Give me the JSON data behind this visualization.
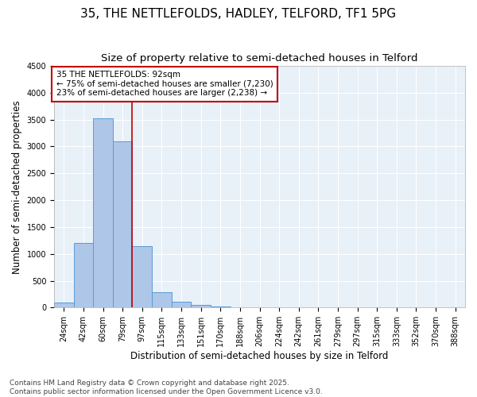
{
  "title_line1": "35, THE NETTLEFOLDS, HADLEY, TELFORD, TF1 5PG",
  "title_line2": "Size of property relative to semi-detached houses in Telford",
  "xlabel": "Distribution of semi-detached houses by size in Telford",
  "ylabel": "Number of semi-detached properties",
  "categories": [
    "24sqm",
    "42sqm",
    "60sqm",
    "79sqm",
    "97sqm",
    "115sqm",
    "133sqm",
    "151sqm",
    "170sqm",
    "188sqm",
    "206sqm",
    "224sqm",
    "242sqm",
    "261sqm",
    "279sqm",
    "297sqm",
    "315sqm",
    "333sqm",
    "352sqm",
    "370sqm",
    "388sqm"
  ],
  "values": [
    90,
    1200,
    3520,
    3100,
    1150,
    280,
    115,
    55,
    20,
    0,
    0,
    0,
    0,
    0,
    0,
    0,
    0,
    0,
    0,
    0,
    0
  ],
  "bar_color": "#aec6e8",
  "bar_edge_color": "#5b9bd5",
  "vline_x": 3.5,
  "vline_color": "#c00000",
  "annotation_text": "35 THE NETTLEFOLDS: 92sqm\n← 75% of semi-detached houses are smaller (7,230)\n23% of semi-detached houses are larger (2,238) →",
  "annotation_box_color": "#c00000",
  "background_color": "#e8f0f8",
  "ylim": [
    0,
    4500
  ],
  "yticks": [
    0,
    500,
    1000,
    1500,
    2000,
    2500,
    3000,
    3500,
    4000,
    4500
  ],
  "footer_line1": "Contains HM Land Registry data © Crown copyright and database right 2025.",
  "footer_line2": "Contains public sector information licensed under the Open Government Licence v3.0.",
  "title_fontsize": 11,
  "subtitle_fontsize": 9.5,
  "axis_label_fontsize": 8.5,
  "tick_fontsize": 7,
  "annotation_fontsize": 7.5,
  "footer_fontsize": 6.5
}
